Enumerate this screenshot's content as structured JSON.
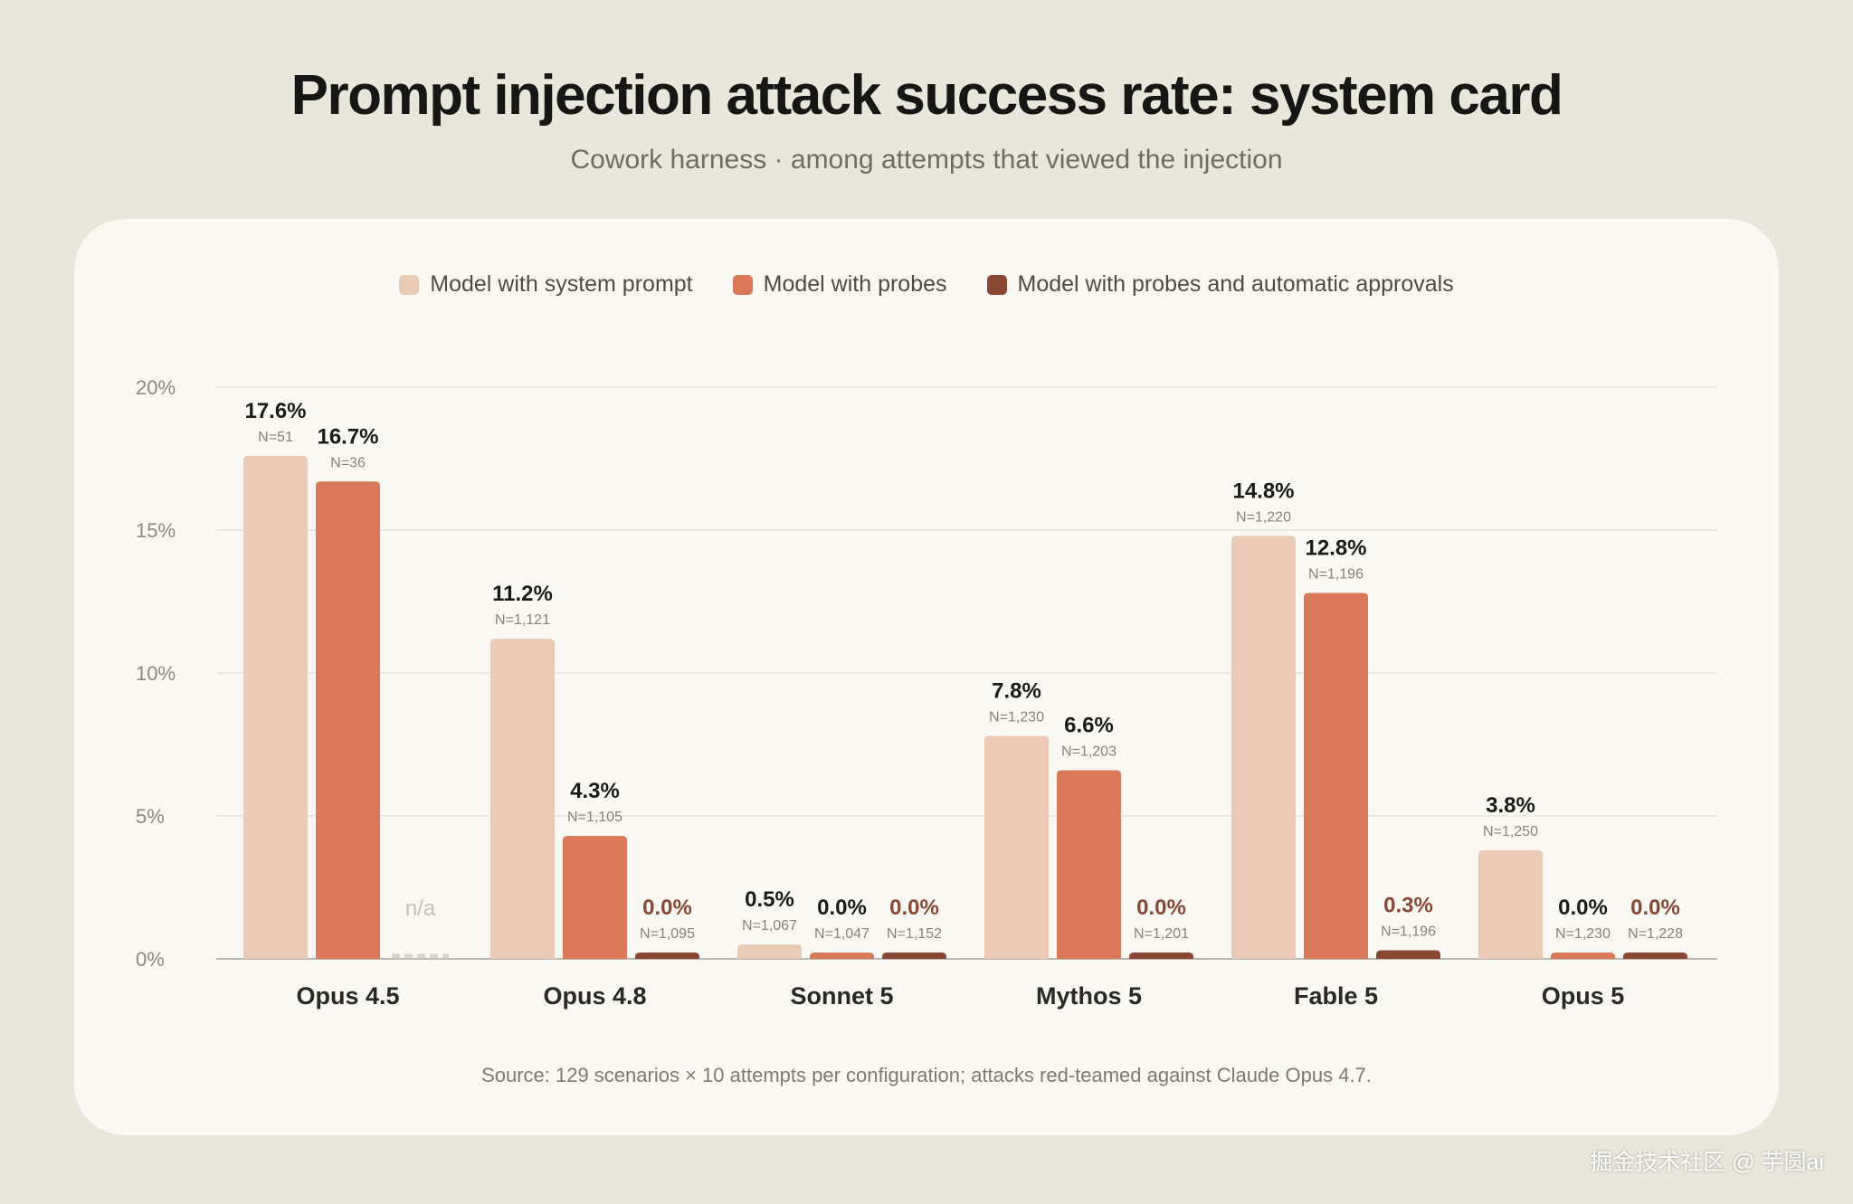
{
  "title": "Prompt injection attack success rate: system card",
  "subtitle": "Cowork harness · among attempts that viewed the injection",
  "source": "Source: 129 scenarios × 10 attempts per configuration; attacks red-teamed against Claude Opus 4.7.",
  "watermark": "掘金技术社区 @ 芋圆ai",
  "chart_data": {
    "type": "bar",
    "categories": [
      "Opus 4.5",
      "Opus 4.8",
      "Sonnet 5",
      "Mythos 5",
      "Fable 5",
      "Opus 5"
    ],
    "ylim": [
      0,
      20
    ],
    "yticks": [
      "0%",
      "5%",
      "10%",
      "15%",
      "20%"
    ],
    "ytick_values": [
      0,
      5,
      10,
      15,
      20
    ],
    "legend_position": "top-center",
    "grid": true,
    "series": [
      {
        "name": "Model with system prompt",
        "color": "#ebcab6",
        "label_color": "#1a1a18",
        "values": [
          17.6,
          11.2,
          0.5,
          7.8,
          14.8,
          3.8
        ],
        "labels": [
          "17.6%",
          "11.2%",
          "0.5%",
          "7.8%",
          "14.8%",
          "3.8%"
        ],
        "n": [
          "N=51",
          "N=1,121",
          "N=1,067",
          "N=1,230",
          "N=1,220",
          "N=1,250"
        ]
      },
      {
        "name": "Model with probes",
        "color": "#d9795a",
        "label_color": "#1a1a18",
        "values": [
          16.7,
          4.3,
          0.0,
          6.6,
          12.8,
          0.0
        ],
        "labels": [
          "16.7%",
          "4.3%",
          "0.0%",
          "6.6%",
          "12.8%",
          "0.0%"
        ],
        "n": [
          "N=36",
          "N=1,105",
          "N=1,047",
          "N=1,203",
          "N=1,196",
          "N=1,230"
        ]
      },
      {
        "name": "Model with probes and automatic approvals",
        "color": "#8a4733",
        "label_color": "#8a4733",
        "values": [
          null,
          0.0,
          0.0,
          0.0,
          0.3,
          0.0
        ],
        "labels": [
          "n/a",
          "0.0%",
          "0.0%",
          "0.0%",
          "0.3%",
          "0.0%"
        ],
        "n": [
          "",
          "N=1,095",
          "N=1,152",
          "N=1,201",
          "N=1,196",
          "N=1,228"
        ]
      }
    ]
  }
}
